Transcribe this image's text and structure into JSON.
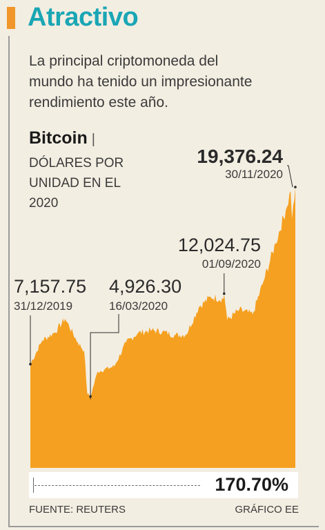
{
  "header": {
    "title": "Atractivo",
    "subtitle": "La principal criptomoneda del mundo ha tenido un impresionante rendimiento este año."
  },
  "legend": {
    "name": "Bitcoin",
    "separator": "|",
    "unit": "DÓLARES POR UNIDAD EN EL 2020"
  },
  "chart_data": {
    "type": "area",
    "title": "Bitcoin",
    "ylabel": "DÓLARES POR UNIDAD EN EL 2020",
    "x_range": [
      "31/12/2019",
      "30/11/2020"
    ],
    "ylim": [
      0,
      20000
    ],
    "series": [
      {
        "name": "Bitcoin",
        "points": [
          [
            "31/12/2019",
            7157.75
          ],
          [
            "15/01/2020",
            8800
          ],
          [
            "31/01/2020",
            9350
          ],
          [
            "13/02/2020",
            10300
          ],
          [
            "29/02/2020",
            8650
          ],
          [
            "08/03/2020",
            8100
          ],
          [
            "12/03/2020",
            5100
          ],
          [
            "16/03/2020",
            4926.3
          ],
          [
            "25/03/2020",
            6650
          ],
          [
            "15/04/2020",
            7000
          ],
          [
            "30/04/2020",
            8650
          ],
          [
            "15/05/2020",
            9300
          ],
          [
            "31/05/2020",
            9500
          ],
          [
            "15/06/2020",
            9400
          ],
          [
            "30/06/2020",
            9150
          ],
          [
            "15/07/2020",
            9200
          ],
          [
            "31/07/2020",
            11100
          ],
          [
            "15/08/2020",
            11800
          ],
          [
            "31/08/2020",
            11650
          ],
          [
            "01/09/2020",
            12024.75
          ],
          [
            "05/09/2020",
            10200
          ],
          [
            "20/09/2020",
            10900
          ],
          [
            "07/10/2020",
            10600
          ],
          [
            "21/10/2020",
            12900
          ],
          [
            "05/11/2020",
            15500
          ],
          [
            "18/11/2020",
            17800
          ],
          [
            "24/11/2020",
            19100
          ],
          [
            "26/11/2020",
            17200
          ],
          [
            "30/11/2020",
            19376.24
          ]
        ]
      }
    ],
    "annotations": [
      {
        "value": "7,157.75",
        "date": "31/12/2019"
      },
      {
        "value": "4,926.30",
        "date": "16/03/2020"
      },
      {
        "value": "12,024.75",
        "date": "01/09/2020"
      },
      {
        "value": "19,376.24",
        "date": "30/11/2020"
      }
    ],
    "change": "170.70%",
    "colors": {
      "area": "#f5a020",
      "accent": "#1aa6b5",
      "bar": "#f0962a",
      "panel": "#f3eee2"
    }
  },
  "footer": {
    "source": "FUENTE: REUTERS",
    "credit": "GRÁFICO EE"
  }
}
